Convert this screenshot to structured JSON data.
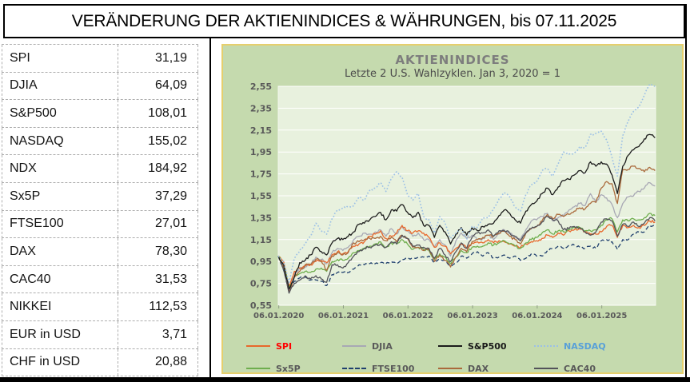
{
  "title": "VERÄNDERUNG DER AKTIENINDICES & WÄHRUNGEN, bis 07.11.2025",
  "table": {
    "rows": [
      {
        "label": "SPI",
        "value": "31,19"
      },
      {
        "label": "DJIA",
        "value": "64,09"
      },
      {
        "label": "S&P500",
        "value": "108,01"
      },
      {
        "label": "NASDAQ",
        "value": "155,02"
      },
      {
        "label": "NDX",
        "value": "184,92"
      },
      {
        "label": "Sx5P",
        "value": "37,29"
      },
      {
        "label": "FTSE100",
        "value": "27,01"
      },
      {
        "label": "DAX",
        "value": "78,30"
      },
      {
        "label": "CAC40",
        "value": "31,53"
      },
      {
        "label": "NIKKEI",
        "value": "112,53"
      },
      {
        "label": "EUR in USD",
        "value": "3,71"
      },
      {
        "label": "CHF in USD",
        "value": "20,88"
      }
    ]
  },
  "colors": {
    "chart_bg": "#c5daae",
    "plot_bg": "#e8f1de",
    "gold_border": "#e6cf6d",
    "gridline": "#ffffff",
    "axis_label": "#595959",
    "chart_title": "#7d7d7d",
    "chart_subtitle": "#4b4b4b",
    "tick": "#8f9f85"
  },
  "chart_data": {
    "type": "line",
    "title": "AKTIENINDICES",
    "subtitle": "Letzte 2 U.S. Wahlzyklen. Jan 3, 2020 = 1",
    "x_start": "2020-01",
    "x_step_months": 1,
    "x_months_total": 70.1,
    "x_tick_labels": [
      "06.01.2020",
      "06.01.2021",
      "06.01.2022",
      "06.01.2023",
      "06.01.2024",
      "06.01.2025"
    ],
    "y_tick_labels": [
      "2,55",
      "2,35",
      "2,15",
      "1,95",
      "1,75",
      "1,55",
      "1,35",
      "1,15",
      "0,95",
      "0,75",
      "0,55"
    ],
    "ylim": [
      0.55,
      2.55
    ],
    "grid": true,
    "legend_position": "bottom",
    "series": [
      {
        "name": "SPI",
        "style": "solid",
        "color": "#e8682c",
        "label_color": "#ff0000",
        "values": [
          1.0,
          0.95,
          0.72,
          0.86,
          0.89,
          0.91,
          0.92,
          0.95,
          0.96,
          0.94,
          1.01,
          1.04,
          1.02,
          1.04,
          1.09,
          1.11,
          1.13,
          1.18,
          1.2,
          1.23,
          1.16,
          1.18,
          1.21,
          1.28,
          1.23,
          1.21,
          1.23,
          1.21,
          1.17,
          1.08,
          1.12,
          1.09,
          1.02,
          1.07,
          1.11,
          1.07,
          1.12,
          1.13,
          1.12,
          1.15,
          1.12,
          1.14,
          1.13,
          1.11,
          1.09,
          1.08,
          1.11,
          1.13,
          1.14,
          1.16,
          1.19,
          1.17,
          1.21,
          1.19,
          1.23,
          1.24,
          1.25,
          1.22,
          1.2,
          1.2,
          1.22,
          1.27,
          1.28,
          1.17,
          1.28,
          1.26,
          1.28,
          1.26,
          1.28,
          1.32,
          1.31
        ]
      },
      {
        "name": "DJIA",
        "style": "solid",
        "color": "#a8a8b4",
        "label_color": "#595959",
        "values": [
          1.0,
          0.89,
          0.68,
          0.85,
          0.89,
          0.9,
          0.92,
          0.99,
          0.97,
          0.93,
          1.03,
          1.07,
          1.05,
          1.08,
          1.15,
          1.18,
          1.21,
          1.2,
          1.22,
          1.24,
          1.18,
          1.25,
          1.2,
          1.27,
          1.23,
          1.18,
          1.21,
          1.15,
          1.15,
          1.08,
          1.15,
          1.1,
          1.0,
          1.14,
          1.21,
          1.16,
          1.19,
          1.15,
          1.16,
          1.19,
          1.15,
          1.2,
          1.24,
          1.21,
          1.17,
          1.15,
          1.24,
          1.32,
          1.33,
          1.36,
          1.39,
          1.32,
          1.35,
          1.37,
          1.42,
          1.45,
          1.48,
          1.46,
          1.57,
          1.49,
          1.56,
          1.53,
          1.47,
          1.35,
          1.48,
          1.54,
          1.55,
          1.59,
          1.62,
          1.67,
          1.64
        ]
      },
      {
        "name": "S&P500",
        "style": "solid",
        "color": "#1c1c1c",
        "label_color": "#1a1a1a",
        "values": [
          1.0,
          0.92,
          0.7,
          0.81,
          0.94,
          0.96,
          1.01,
          1.08,
          1.04,
          1.01,
          1.12,
          1.16,
          1.15,
          1.18,
          1.22,
          1.29,
          1.3,
          1.33,
          1.36,
          1.4,
          1.33,
          1.42,
          1.41,
          1.47,
          1.4,
          1.35,
          1.4,
          1.28,
          1.28,
          1.17,
          1.28,
          1.22,
          1.11,
          1.2,
          1.26,
          1.19,
          1.26,
          1.23,
          1.27,
          1.29,
          1.3,
          1.37,
          1.42,
          1.39,
          1.33,
          1.3,
          1.41,
          1.47,
          1.5,
          1.57,
          1.62,
          1.56,
          1.63,
          1.69,
          1.7,
          1.74,
          1.78,
          1.76,
          1.86,
          1.82,
          1.86,
          1.84,
          1.74,
          1.57,
          1.82,
          1.92,
          1.97,
          2.0,
          2.07,
          2.11,
          2.08
        ]
      },
      {
        "name": "NASDAQ",
        "style": "dotted",
        "color": "#9cc0e6",
        "label_color": "#58a0d8",
        "values": [
          1.0,
          0.95,
          0.76,
          0.98,
          1.05,
          1.11,
          1.18,
          1.3,
          1.23,
          1.2,
          1.34,
          1.42,
          1.44,
          1.45,
          1.46,
          1.54,
          1.51,
          1.6,
          1.62,
          1.67,
          1.59,
          1.71,
          1.77,
          1.72,
          1.56,
          1.51,
          1.57,
          1.36,
          1.33,
          1.21,
          1.36,
          1.3,
          1.16,
          1.21,
          1.26,
          1.15,
          1.27,
          1.26,
          1.35,
          1.35,
          1.43,
          1.52,
          1.58,
          1.54,
          1.45,
          1.41,
          1.56,
          1.65,
          1.68,
          1.78,
          1.8,
          1.73,
          1.84,
          1.95,
          1.93,
          1.94,
          2.0,
          1.99,
          2.11,
          2.12,
          2.14,
          2.06,
          1.9,
          1.73,
          2.1,
          2.23,
          2.32,
          2.36,
          2.47,
          2.57,
          2.55
        ]
      },
      {
        "name": "Sx5P",
        "style": "solid",
        "color": "#6fae4e",
        "label_color": "#595959",
        "values": [
          1.0,
          0.92,
          0.71,
          0.81,
          0.84,
          0.86,
          0.85,
          0.88,
          0.89,
          0.86,
          0.95,
          0.97,
          0.96,
          0.98,
          1.03,
          1.05,
          1.07,
          1.09,
          1.11,
          1.13,
          1.08,
          1.12,
          1.11,
          1.15,
          1.11,
          1.06,
          1.08,
          1.06,
          1.05,
          0.97,
          1.02,
          0.99,
          0.93,
          0.99,
          1.05,
          1.03,
          1.08,
          1.09,
          1.09,
          1.12,
          1.1,
          1.12,
          1.14,
          1.11,
          1.09,
          1.07,
          1.12,
          1.15,
          1.17,
          1.21,
          1.24,
          1.2,
          1.23,
          1.22,
          1.24,
          1.26,
          1.26,
          1.23,
          1.23,
          1.24,
          1.28,
          1.33,
          1.34,
          1.22,
          1.33,
          1.32,
          1.34,
          1.33,
          1.35,
          1.39,
          1.37
        ]
      },
      {
        "name": "FTSE100",
        "style": "dashed",
        "color": "#20406e",
        "label_color": "#595959",
        "values": [
          1.0,
          0.87,
          0.68,
          0.77,
          0.8,
          0.81,
          0.78,
          0.78,
          0.77,
          0.73,
          0.83,
          0.85,
          0.85,
          0.85,
          0.88,
          0.92,
          0.92,
          0.93,
          0.93,
          0.94,
          0.93,
          0.95,
          0.93,
          0.97,
          0.98,
          0.98,
          0.99,
          0.99,
          1.0,
          0.94,
          0.97,
          0.96,
          0.91,
          0.93,
          1.0,
          0.98,
          1.02,
          1.04,
          1.0,
          1.03,
          0.98,
          0.99,
          1.01,
          0.98,
          1.0,
          0.96,
          0.98,
          1.02,
          1.0,
          1.0,
          1.05,
          1.07,
          1.09,
          1.07,
          1.1,
          1.1,
          1.08,
          1.07,
          1.09,
          1.07,
          1.14,
          1.15,
          1.13,
          1.06,
          1.15,
          1.15,
          1.2,
          1.22,
          1.22,
          1.28,
          1.27
        ]
      },
      {
        "name": "DAX",
        "style": "solid",
        "color": "#aa6a3c",
        "label_color": "#595959",
        "values": [
          1.0,
          0.89,
          0.67,
          0.81,
          0.86,
          0.92,
          0.92,
          0.97,
          0.95,
          0.87,
          1.0,
          1.03,
          1.01,
          1.03,
          1.12,
          1.13,
          1.15,
          1.16,
          1.16,
          1.18,
          1.14,
          1.17,
          1.13,
          1.19,
          1.16,
          1.08,
          1.08,
          1.05,
          1.07,
          0.95,
          1.01,
          0.96,
          0.9,
          0.99,
          1.07,
          1.04,
          1.13,
          1.15,
          1.17,
          1.19,
          1.18,
          1.21,
          1.23,
          1.18,
          1.15,
          1.11,
          1.21,
          1.25,
          1.27,
          1.32,
          1.38,
          1.34,
          1.38,
          1.36,
          1.38,
          1.41,
          1.44,
          1.43,
          1.48,
          1.49,
          1.62,
          1.68,
          1.66,
          1.48,
          1.79,
          1.79,
          1.82,
          1.8,
          1.77,
          1.81,
          1.78
        ]
      },
      {
        "name": "CAC40",
        "style": "solid",
        "color": "#53535a",
        "label_color": "#595959",
        "values": [
          1.0,
          0.88,
          0.66,
          0.75,
          0.78,
          0.82,
          0.79,
          0.82,
          0.79,
          0.76,
          0.92,
          0.92,
          0.89,
          0.94,
          1.0,
          1.04,
          1.07,
          1.08,
          1.1,
          1.11,
          1.08,
          1.13,
          1.11,
          1.19,
          1.16,
          1.09,
          1.1,
          1.08,
          1.07,
          0.98,
          1.07,
          1.01,
          0.95,
          1.04,
          1.12,
          1.07,
          1.17,
          1.21,
          1.21,
          1.24,
          1.18,
          1.23,
          1.23,
          1.21,
          1.18,
          1.14,
          1.21,
          1.25,
          1.27,
          1.31,
          1.36,
          1.33,
          1.32,
          1.24,
          1.25,
          1.27,
          1.26,
          1.22,
          1.19,
          1.22,
          1.31,
          1.34,
          1.32,
          1.18,
          1.29,
          1.27,
          1.31,
          1.27,
          1.3,
          1.35,
          1.32
        ]
      }
    ]
  }
}
